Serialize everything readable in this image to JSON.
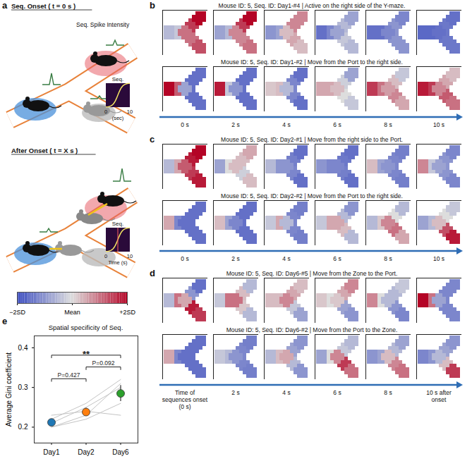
{
  "panel_a": {
    "letter": "a",
    "onset_title": "Seq. Onset ( t = 0 s )",
    "intensity_label": "Seq. Spike Intensity",
    "after_title": "After Onset ( t = X s )",
    "insets": [
      {
        "label": "Seq.",
        "xlim": [
          0,
          10
        ],
        "xlabel": "(sec)"
      },
      {
        "label": "Seq.",
        "xlim": [
          0,
          10
        ],
        "xlabel": "Time (s)"
      }
    ]
  },
  "colorbar": {
    "range": [
      -2,
      2
    ],
    "ticks": [
      {
        "value": -2,
        "label": "−2SD"
      },
      {
        "value": 0,
        "label": "Mean"
      },
      {
        "value": 2,
        "label": "+2SD"
      }
    ],
    "colors": [
      "#3b4cc0",
      "#dddddd",
      "#b40426"
    ]
  },
  "heatmap_panels": [
    {
      "letter": "b",
      "time_labels": [
        "0 s",
        "2 s",
        "4 s",
        "6 s",
        "8 s",
        "10 s"
      ],
      "rows": [
        {
          "title": "Mouse ID: 5, Seq. ID: Day1-#4 | Active on the right side of the Y-maze.",
          "cells": [
            [
              -0.5,
              -0.3,
              1.0,
              1.5,
              2.0,
              1.0,
              1.3
            ],
            [
              -0.8,
              -0.5,
              0.8,
              1.5,
              2.0,
              0.8,
              1.0
            ],
            [
              -1.0,
              -0.8,
              0.3,
              0.8,
              0.8,
              0.5,
              0.3
            ],
            [
              -1.5,
              -1.2,
              -0.8,
              -0.5,
              -0.8,
              -0.3,
              -0.5
            ],
            [
              -1.5,
              -1.5,
              -1.2,
              -1.0,
              -1.2,
              -1.0,
              -1.0
            ],
            [
              -1.6,
              -1.6,
              -1.5,
              -1.4,
              -1.5,
              -1.4,
              -1.4
            ]
          ]
        },
        {
          "title": "Mouse ID: 5, Seq. ID: Day1-#2 | Move  from the Port to the right side.",
          "cells": [
            [
              2.0,
              1.2,
              -0.8,
              -1.5,
              -1.5,
              -1.5,
              -1.5
            ],
            [
              1.8,
              -0.3,
              -1.0,
              -1.5,
              -1.5,
              -1.5,
              -1.5
            ],
            [
              0.2,
              0.3,
              -0.5,
              -1.2,
              -1.5,
              -1.2,
              -1.5
            ],
            [
              0.5,
              0.5,
              0.3,
              -0.2,
              -0.8,
              0.0,
              -0.3
            ],
            [
              1.5,
              1.0,
              0.6,
              0.3,
              -0.3,
              0.8,
              0.5
            ],
            [
              1.8,
              1.5,
              0.8,
              0.5,
              0.3,
              1.2,
              1.0
            ]
          ]
        }
      ]
    },
    {
      "letter": "c",
      "time_labels": [
        "0 s",
        "2 s",
        "4 s",
        "6 s",
        "8 s",
        "10 s"
      ],
      "rows": [
        {
          "title": "Mouse ID: 5, Seq. ID: Day2-#1 | Move from the right side to the Port.",
          "cells": [
            [
              -0.5,
              0.5,
              1.2,
              1.8,
              2.0,
              1.5,
              1.8
            ],
            [
              -0.8,
              0.0,
              0.3,
              0.3,
              0.5,
              -0.2,
              0.3
            ],
            [
              -0.5,
              -1.0,
              -1.0,
              -1.3,
              -1.5,
              -1.2,
              -1.5
            ],
            [
              -1.0,
              -1.2,
              -1.2,
              -1.4,
              -1.5,
              -1.3,
              -1.5
            ],
            [
              0.3,
              -0.8,
              -1.0,
              -1.2,
              -1.3,
              -1.2,
              -1.3
            ],
            [
              0.8,
              -0.3,
              -0.8,
              -1.0,
              -1.2,
              -1.0,
              -1.2
            ]
          ]
        },
        {
          "title": "Mouse ID: 5, Seq. ID: Day2-#2 | Move from the Port to the right side.",
          "cells": [
            [
              0.5,
              -1.2,
              -1.5,
              -1.5,
              -1.5,
              -1.5,
              -1.5
            ],
            [
              0.3,
              -0.8,
              -1.2,
              -1.5,
              -1.5,
              -1.5,
              -1.5
            ],
            [
              -0.3,
              0.5,
              -0.5,
              -1.2,
              -1.3,
              -1.2,
              -1.3
            ],
            [
              -0.3,
              0.5,
              0.5,
              -0.5,
              -1.0,
              0.3,
              -0.5
            ],
            [
              -0.5,
              0.2,
              0.8,
              0.0,
              -0.5,
              1.0,
              0.5
            ],
            [
              -0.8,
              -0.5,
              0.3,
              0.0,
              -0.3,
              1.3,
              1.8
            ]
          ]
        }
      ]
    },
    {
      "letter": "d",
      "time_labels": [
        "Time of sequences onset (0 s)",
        "2 s",
        "4 s",
        "6 s",
        "8 s",
        "10 s after onset"
      ],
      "rows": [
        {
          "title": "Mouse ID: 5, Seq. ID: Day6-#5 | Move from the Zone to the Port.",
          "cells": [
            [
              -0.5,
              1.0,
              0.5,
              -1.0,
              -1.5,
              1.8,
              1.5
            ],
            [
              -0.3,
              1.0,
              1.0,
              0.3,
              -0.5,
              0.2,
              -0.5
            ],
            [
              0.3,
              0.3,
              0.8,
              0.5,
              0.3,
              -0.3,
              -0.8
            ],
            [
              0.2,
              0.0,
              0.2,
              0.5,
              0.8,
              -0.8,
              -1.0
            ],
            [
              0.8,
              0.0,
              -0.5,
              -0.5,
              -0.3,
              -1.0,
              -1.2
            ],
            [
              2.0,
              1.0,
              -0.8,
              -1.2,
              -1.2,
              -1.2,
              -1.2
            ]
          ]
        },
        {
          "title": "Mouse ID: 5, Seq. ID: Day6-#2 | Move from the Port to the Zone.",
          "cells": [
            [
              0.5,
              -1.2,
              -1.5,
              -1.5,
              -1.5,
              -1.5,
              -1.5
            ],
            [
              -0.3,
              -0.5,
              -1.0,
              -1.2,
              -1.3,
              -1.2,
              -1.3
            ],
            [
              -0.5,
              0.3,
              0.5,
              -0.8,
              -1.0,
              -0.5,
              -1.0
            ],
            [
              -0.8,
              0.0,
              0.8,
              -0.3,
              -0.5,
              1.5,
              1.0
            ],
            [
              -1.0,
              -0.8,
              0.3,
              -0.5,
              -0.8,
              0.8,
              1.0
            ],
            [
              -1.2,
              -1.0,
              -0.5,
              -0.8,
              -1.0,
              0.3,
              1.5
            ]
          ]
        }
      ]
    }
  ],
  "chart_data": {
    "type": "scatter",
    "letter": "e",
    "title": "Spatial specificity of Seq.",
    "y_label": "Average Gini coefficient",
    "categories": [
      "Day1",
      "Day2",
      "Day6"
    ],
    "values": [
      0.212,
      0.238,
      0.285
    ],
    "errors": [
      0.008,
      0.01,
      0.02
    ],
    "colors": [
      "#1f77b4",
      "#ff7f0e",
      "#2ca02c"
    ],
    "individual_values": [
      [
        0.2,
        0.22,
        0.26
      ],
      [
        0.21,
        0.25,
        0.3
      ],
      [
        0.22,
        0.26,
        0.32
      ],
      [
        0.23,
        0.24,
        0.23
      ],
      [
        0.2,
        0.23,
        0.31
      ]
    ],
    "ylim": [
      0.16,
      0.43
    ],
    "yticks": [
      0.2,
      0.3,
      0.4
    ],
    "annotations": [
      {
        "from": "Day1",
        "to": "Day2",
        "text": "P=0.427"
      },
      {
        "from": "Day2",
        "to": "Day6",
        "text": "P=0.092"
      },
      {
        "from": "Day1",
        "to": "Day6",
        "text": "**"
      }
    ]
  }
}
